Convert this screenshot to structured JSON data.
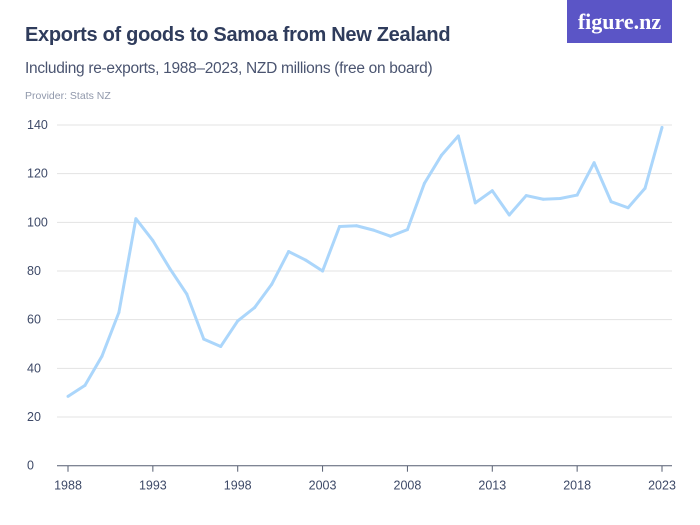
{
  "logo": "figure.nz",
  "chart_data": {
    "type": "line",
    "title": "Exports of goods to Samoa from New Zealand",
    "subtitle": "Including re-exports, 1988–2023, NZD millions (free on board)",
    "provider": "Provider: Stats NZ",
    "xlabel": "",
    "ylabel": "",
    "ylim": [
      0,
      140
    ],
    "xlim": [
      1988,
      2023
    ],
    "yticks": [
      0,
      20,
      40,
      60,
      80,
      100,
      120,
      140
    ],
    "xticks": [
      1988,
      1993,
      1998,
      2003,
      2008,
      2013,
      2018,
      2023
    ],
    "grid": true,
    "line_color": "#abd6fb",
    "x": [
      1988,
      1989,
      1990,
      1991,
      1992,
      1993,
      1994,
      1995,
      1996,
      1997,
      1998,
      1999,
      2000,
      2001,
      2002,
      2003,
      2004,
      2005,
      2006,
      2007,
      2008,
      2009,
      2010,
      2011,
      2012,
      2013,
      2014,
      2015,
      2016,
      2017,
      2018,
      2019,
      2020,
      2021,
      2022,
      2023
    ],
    "values": [
      28.5,
      33,
      45,
      63,
      101.5,
      92.5,
      81,
      70.5,
      52,
      49,
      59.5,
      65,
      74.5,
      88,
      84.5,
      80,
      98.3,
      98.6,
      96.8,
      94.3,
      97,
      116,
      127.5,
      135.5,
      108,
      113,
      103,
      111,
      109.5,
      109.8,
      111.2,
      124.5,
      108.5,
      106,
      114,
      139
    ]
  }
}
